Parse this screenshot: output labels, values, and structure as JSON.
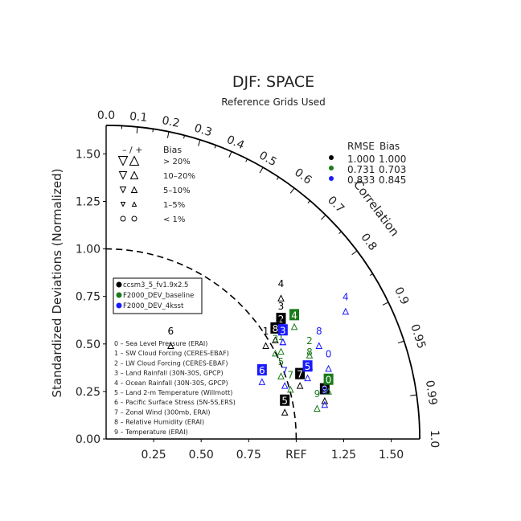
{
  "chart_data": {
    "type": "scatter",
    "diagram": "taylor",
    "title": "DJF: SPACE",
    "subtitle": "Reference Grids Used",
    "ylabel": "Standardized Deviations (Normalized)",
    "ref_label": "REF",
    "corr_label": "Correlation",
    "y_ticks": [
      "0.00",
      "0.25",
      "0.50",
      "0.75",
      "1.00",
      "1.25",
      "1.50"
    ],
    "x_ticks": [
      "0.25",
      "0.50",
      "0.75",
      "1.25",
      "1.50"
    ],
    "top_ticks": [
      "0.0",
      "0.1",
      "0.2",
      "0.3",
      "0.4",
      "0.5"
    ],
    "corr_ticks": [
      "0.6",
      "0.7",
      "0.8",
      "0.9",
      "0.95",
      "0.99",
      "1.0"
    ],
    "rmse_header": "RMSE",
    "bias_header": "Bias",
    "rmse_rows": [
      {
        "color": "#000000",
        "rmse": "1.000",
        "bias": "1.000"
      },
      {
        "color": "#1a7a1a",
        "rmse": "0.731",
        "bias": "0.703"
      },
      {
        "color": "#1a1aff",
        "rmse": "0.833",
        "bias": "0.845"
      }
    ],
    "bias_legend": {
      "header_sign": "– / +",
      "header_label": "Bias",
      "rows": [
        "> 20%",
        "10–20%",
        "5–10%",
        "1–5%",
        "< 1%"
      ]
    },
    "model_legend": [
      {
        "name": "ccsm3_5_fv1.9x2.5",
        "color": "#000000"
      },
      {
        "name": "F2000_DEV_baseline",
        "color": "#1a7a1a"
      },
      {
        "name": "F2000_DEV_4ksst",
        "color": "#1a1aff"
      }
    ],
    "variables": [
      "0 – Sea Level Pressure (ERAI)",
      "1 – SW Cloud Forcing (CERES-EBAF)",
      "2 – LW Cloud Forcing (CERES-EBAF)",
      "3 – Land Rainfall (30N-30S, GPCP)",
      "4 – Ocean Rainfall (30N-30S, GPCP)",
      "5 – Land 2-m Temperature (Willmott)",
      "6 – Pacific Surface Stress (5N-5S,ERS)",
      "7 – Zonal Wind (300mb, ERAI)",
      "8 – Relative Humidity (ERAI)",
      "9 – Temperature (ERAI)"
    ],
    "series": [
      {
        "name": "ccsm3_5_fv1.9x2.5",
        "color": "#000000",
        "points": [
          {
            "id": "1",
            "x": 0.84,
            "y": 0.55,
            "boxed": false
          },
          {
            "id": "2",
            "x": 0.92,
            "y": 0.63,
            "boxed": true
          },
          {
            "id": "3",
            "x": 0.92,
            "y": 0.68,
            "boxed": false
          },
          {
            "id": "4",
            "x": 0.92,
            "y": 0.8,
            "boxed": false
          },
          {
            "id": "5",
            "x": 0.94,
            "y": 0.2,
            "boxed": true
          },
          {
            "id": "6",
            "x": 0.34,
            "y": 0.55,
            "boxed": false
          },
          {
            "id": "7",
            "x": 1.02,
            "y": 0.34,
            "boxed": true
          },
          {
            "id": "8",
            "x": 0.89,
            "y": 0.58,
            "boxed": true
          },
          {
            "id": "9",
            "x": 1.15,
            "y": 0.26,
            "boxed": true
          }
        ]
      },
      {
        "name": "F2000_DEV_baseline",
        "color": "#1a7a1a",
        "points": [
          {
            "id": "0",
            "x": 1.17,
            "y": 0.31,
            "boxed": true
          },
          {
            "id": "1",
            "x": 0.92,
            "y": 0.52,
            "boxed": false
          },
          {
            "id": "2",
            "x": 1.07,
            "y": 0.5,
            "boxed": false
          },
          {
            "id": "3",
            "x": 0.89,
            "y": 0.51,
            "boxed": false
          },
          {
            "id": "4",
            "x": 0.99,
            "y": 0.65,
            "boxed": true
          },
          {
            "id": "5",
            "x": 0.92,
            "y": 0.39,
            "boxed": false
          },
          {
            "id": "7",
            "x": 0.97,
            "y": 0.32,
            "boxed": false
          },
          {
            "id": "8",
            "x": 1.07,
            "y": 0.44,
            "boxed": false
          },
          {
            "id": "9",
            "x": 1.11,
            "y": 0.22,
            "boxed": false
          }
        ]
      },
      {
        "name": "F2000_DEV_4ksst",
        "color": "#1a1aff",
        "points": [
          {
            "id": "0",
            "x": 1.17,
            "y": 0.43,
            "boxed": false
          },
          {
            "id": "1",
            "x": 0.93,
            "y": 0.57,
            "boxed": false
          },
          {
            "id": "3",
            "x": 0.93,
            "y": 0.57,
            "boxed": true
          },
          {
            "id": "4",
            "x": 1.26,
            "y": 0.73,
            "boxed": false
          },
          {
            "id": "5",
            "x": 1.06,
            "y": 0.38,
            "boxed": true
          },
          {
            "id": "6",
            "x": 0.82,
            "y": 0.36,
            "boxed": true
          },
          {
            "id": "7",
            "x": 0.94,
            "y": 0.34,
            "boxed": false
          },
          {
            "id": "8",
            "x": 1.12,
            "y": 0.55,
            "boxed": false
          },
          {
            "id": "9",
            "x": 1.15,
            "y": 0.24,
            "boxed": false
          }
        ]
      }
    ]
  }
}
